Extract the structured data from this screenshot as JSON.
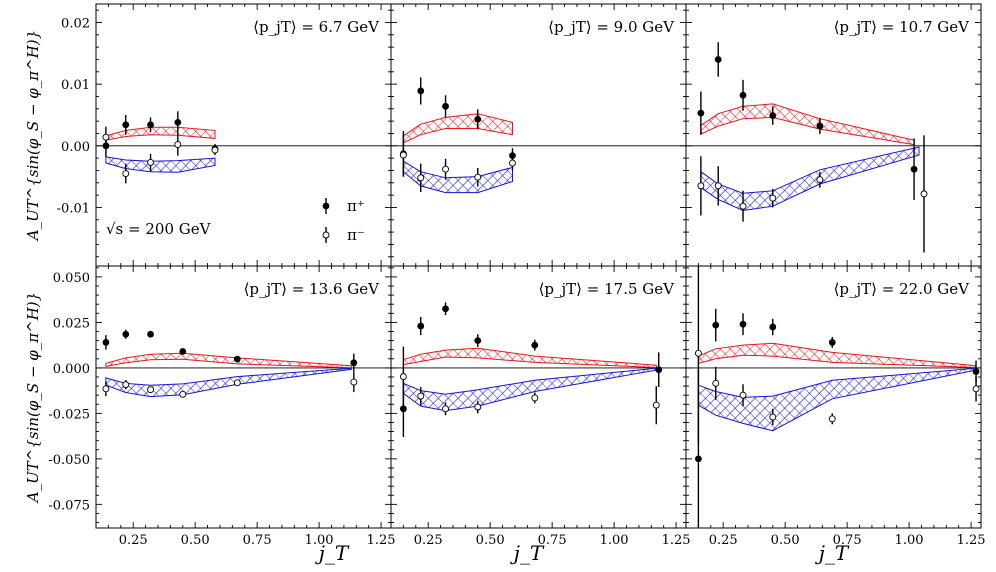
{
  "chart_data": {
    "type": "scatter",
    "title": "",
    "xlabel": "j_T",
    "ylabel": "A_UT^{sin(φ_S − φ_π^H)}",
    "legend": [
      "π⁺",
      "π⁻"
    ],
    "annotation": "√s = 200 GeV",
    "xlim": [
      0.1,
      1.29
    ],
    "xticks": [
      "0.25",
      "0.50",
      "0.75",
      "1.00",
      "1.25"
    ],
    "rows": [
      {
        "ylim": [
          -0.0195,
          0.023
        ],
        "yticks": [
          "0.02",
          "0.01",
          "0.00",
          "-0.01"
        ],
        "ytick_values": [
          0.02,
          0.01,
          0.0,
          -0.01
        ]
      },
      {
        "ylim": [
          -0.088,
          0.056
        ],
        "yticks": [
          "0.050",
          "0.025",
          "0.000",
          "-0.025",
          "-0.050",
          "-0.075"
        ],
        "ytick_values": [
          0.05,
          0.025,
          0.0,
          -0.025,
          -0.05,
          -0.075
        ]
      }
    ],
    "panels": [
      {
        "label": "⟨p_jT⟩ = 6.7 GeV",
        "row": 0,
        "pi_plus": {
          "x": [
            0.14,
            0.22,
            0.32,
            0.43,
            0.58
          ],
          "y": [
            0.0,
            0.0034,
            0.0034,
            0.0038,
            -0.0005
          ],
          "err": [
            0.0018,
            0.0016,
            0.0012,
            0.0018,
            0.0008
          ]
        },
        "pi_minus": {
          "x": [
            0.14,
            0.22,
            0.32,
            0.43,
            0.58
          ],
          "y": [
            0.0014,
            -0.0045,
            -0.0027,
            0.0002,
            -0.0007
          ],
          "err": [
            0.0017,
            0.0016,
            0.0014,
            0.0018,
            0.0008
          ]
        },
        "band_plus": {
          "x": [
            0.14,
            0.22,
            0.32,
            0.43,
            0.58
          ],
          "lo": [
            0.0009,
            0.0015,
            0.0018,
            0.0017,
            0.0012
          ],
          "hi": [
            0.0016,
            0.0025,
            0.003,
            0.003,
            0.0025
          ]
        },
        "band_minus": {
          "x": [
            0.14,
            0.22,
            0.32,
            0.43,
            0.58
          ],
          "lo": [
            -0.0028,
            -0.0037,
            -0.0042,
            -0.0043,
            -0.0032
          ],
          "hi": [
            -0.0018,
            -0.0023,
            -0.0025,
            -0.0024,
            -0.002
          ]
        }
      },
      {
        "label": "⟨p_jT⟩ = 9.0 GeV",
        "row": 0,
        "pi_plus": {
          "x": [
            0.15,
            0.22,
            0.32,
            0.45,
            0.59
          ],
          "y": [
            -0.0013,
            0.0089,
            0.0064,
            0.0043,
            -0.0016
          ],
          "err": [
            0.0037,
            0.0022,
            0.0018,
            0.0016,
            0.0012
          ]
        },
        "pi_minus": {
          "x": [
            0.15,
            0.22,
            0.32,
            0.45,
            0.59
          ],
          "y": [
            -0.0015,
            -0.0052,
            -0.0038,
            -0.0051,
            -0.0028
          ],
          "err": [
            0.0035,
            0.0023,
            0.0017,
            0.0015,
            0.0012
          ]
        },
        "band_plus": {
          "x": [
            0.15,
            0.22,
            0.32,
            0.45,
            0.59
          ],
          "lo": [
            0.0005,
            0.0018,
            0.0028,
            0.0028,
            0.0018
          ],
          "hi": [
            0.0016,
            0.0035,
            0.0046,
            0.0052,
            0.0038
          ]
        },
        "band_minus": {
          "x": [
            0.15,
            0.22,
            0.32,
            0.45,
            0.59
          ],
          "lo": [
            -0.0042,
            -0.0065,
            -0.0076,
            -0.0076,
            -0.0058
          ],
          "hi": [
            -0.0025,
            -0.0042,
            -0.0052,
            -0.005,
            -0.0035
          ]
        }
      },
      {
        "label": "⟨p_jT⟩ = 10.7 GeV",
        "row": 0,
        "pi_plus": {
          "x": [
            0.16,
            0.23,
            0.33,
            0.45,
            0.64,
            1.02
          ],
          "y": [
            0.0053,
            0.014,
            0.0082,
            0.0049,
            0.0032,
            -0.0038
          ],
          "err": [
            0.0035,
            0.0028,
            0.0025,
            0.0015,
            0.0013,
            0.005
          ]
        },
        "pi_minus": {
          "x": [
            0.16,
            0.23,
            0.33,
            0.45,
            0.64,
            1.06
          ],
          "y": [
            -0.0065,
            -0.0065,
            -0.0098,
            -0.0085,
            -0.0055,
            -0.0078
          ],
          "err": [
            0.0048,
            0.0032,
            0.0025,
            0.0015,
            0.0013,
            0.0095
          ]
        },
        "band_plus": {
          "x": [
            0.16,
            0.23,
            0.33,
            0.45,
            0.64,
            1.02
          ],
          "lo": [
            0.0019,
            0.0032,
            0.0044,
            0.0046,
            0.0027,
            0.0002
          ],
          "hi": [
            0.0033,
            0.0052,
            0.0064,
            0.0068,
            0.0044,
            0.0009
          ]
        },
        "band_minus": {
          "x": [
            0.16,
            0.23,
            0.33,
            0.45,
            0.64,
            1.04
          ],
          "lo": [
            -0.0068,
            -0.0087,
            -0.0105,
            -0.0098,
            -0.0062,
            -0.0015
          ],
          "hi": [
            -0.0042,
            -0.0062,
            -0.0077,
            -0.0073,
            -0.0039,
            -0.0002
          ]
        }
      },
      {
        "label": "⟨p_jT⟩ = 13.6 GeV",
        "row": 1,
        "pi_plus": {
          "x": [
            0.14,
            0.22,
            0.32,
            0.45,
            0.67,
            1.14
          ],
          "y": [
            0.014,
            0.0185,
            0.0185,
            0.009,
            0.0048,
            0.0028
          ],
          "err": [
            0.004,
            0.0025,
            0.0018,
            0.0012,
            0.0012,
            0.005
          ]
        },
        "pi_minus": {
          "x": [
            0.14,
            0.22,
            0.32,
            0.45,
            0.67,
            1.14
          ],
          "y": [
            -0.0115,
            -0.0092,
            -0.012,
            -0.0145,
            -0.0082,
            -0.0078
          ],
          "err": [
            0.004,
            0.0025,
            0.0018,
            0.0012,
            0.0012,
            0.0055
          ]
        },
        "band_plus": {
          "x": [
            0.14,
            0.22,
            0.32,
            0.45,
            0.67,
            1.13
          ],
          "lo": [
            0.0008,
            0.0028,
            0.0045,
            0.0048,
            0.0022,
            0.0001
          ],
          "hi": [
            0.0025,
            0.0055,
            0.0075,
            0.008,
            0.0055,
            0.0012
          ]
        },
        "band_minus": {
          "x": [
            0.14,
            0.22,
            0.32,
            0.45,
            0.67,
            1.13
          ],
          "lo": [
            -0.0095,
            -0.0135,
            -0.0158,
            -0.0148,
            -0.009,
            -0.0008
          ],
          "hi": [
            -0.0055,
            -0.0085,
            -0.0095,
            -0.0088,
            -0.0048,
            -0.0002
          ]
        }
      },
      {
        "label": "⟨p_jT⟩ = 17.5 GeV",
        "row": 1,
        "pi_plus": {
          "x": [
            0.15,
            0.22,
            0.32,
            0.45,
            0.68,
            1.18
          ],
          "y": [
            -0.0225,
            0.023,
            0.0325,
            0.015,
            0.0125,
            -0.001
          ],
          "err": [
            0.0155,
            0.005,
            0.0035,
            0.0035,
            0.003,
            0.0095
          ]
        },
        "pi_minus": {
          "x": [
            0.15,
            0.22,
            0.32,
            0.45,
            0.68,
            1.17
          ],
          "y": [
            -0.0048,
            -0.0155,
            -0.0225,
            -0.0215,
            -0.0165,
            -0.0205
          ],
          "err": [
            0.0165,
            0.005,
            0.0035,
            0.0035,
            0.003,
            0.0105
          ]
        },
        "band_plus": {
          "x": [
            0.15,
            0.22,
            0.32,
            0.45,
            0.68,
            1.17
          ],
          "lo": [
            0.0018,
            0.0035,
            0.006,
            0.0055,
            0.003,
            0.0002
          ],
          "hi": [
            0.0045,
            0.0075,
            0.0098,
            0.0108,
            0.0065,
            0.0015
          ]
        },
        "band_minus": {
          "x": [
            0.15,
            0.22,
            0.32,
            0.45,
            0.68,
            1.17
          ],
          "lo": [
            -0.014,
            -0.021,
            -0.0235,
            -0.021,
            -0.013,
            -0.0012
          ],
          "hi": [
            -0.0085,
            -0.0125,
            -0.0145,
            -0.012,
            -0.0068,
            -0.0002
          ]
        }
      },
      {
        "label": "⟨p_jT⟩ = 22.0 GeV",
        "row": 1,
        "pi_plus": {
          "x": [
            0.15,
            0.22,
            0.33,
            0.45,
            0.69,
            1.27
          ],
          "y": [
            -0.05,
            0.0235,
            0.024,
            0.0225,
            0.014,
            -0.002
          ],
          "err": [
            0.05,
            0.009,
            0.006,
            0.0045,
            0.003,
            0.006
          ]
        },
        "pi_minus": {
          "x": [
            0.15,
            0.22,
            0.33,
            0.45,
            0.69,
            1.27
          ],
          "y": [
            0.008,
            -0.0085,
            -0.015,
            -0.027,
            -0.028,
            -0.0115
          ],
          "err": [
            0.05,
            0.009,
            0.006,
            0.0045,
            0.003,
            0.007
          ]
        },
        "band_plus": {
          "x": [
            0.15,
            0.22,
            0.33,
            0.45,
            0.69,
            1.27
          ],
          "lo": [
            0.0025,
            0.005,
            0.007,
            0.0065,
            0.003,
            0.0002
          ],
          "hi": [
            0.0065,
            0.0105,
            0.0125,
            0.0135,
            0.0085,
            0.0012
          ]
        },
        "band_minus": {
          "x": [
            0.15,
            0.22,
            0.33,
            0.45,
            0.69,
            1.27
          ],
          "lo": [
            -0.0205,
            -0.026,
            -0.0305,
            -0.0345,
            -0.017,
            -0.0012
          ],
          "hi": [
            -0.0095,
            -0.013,
            -0.0162,
            -0.0155,
            -0.0068,
            -0.0002
          ]
        }
      }
    ],
    "colors": {
      "pi_plus_band": "#e8151b",
      "pi_minus_band": "#1414d9",
      "marker": "#000000"
    }
  }
}
